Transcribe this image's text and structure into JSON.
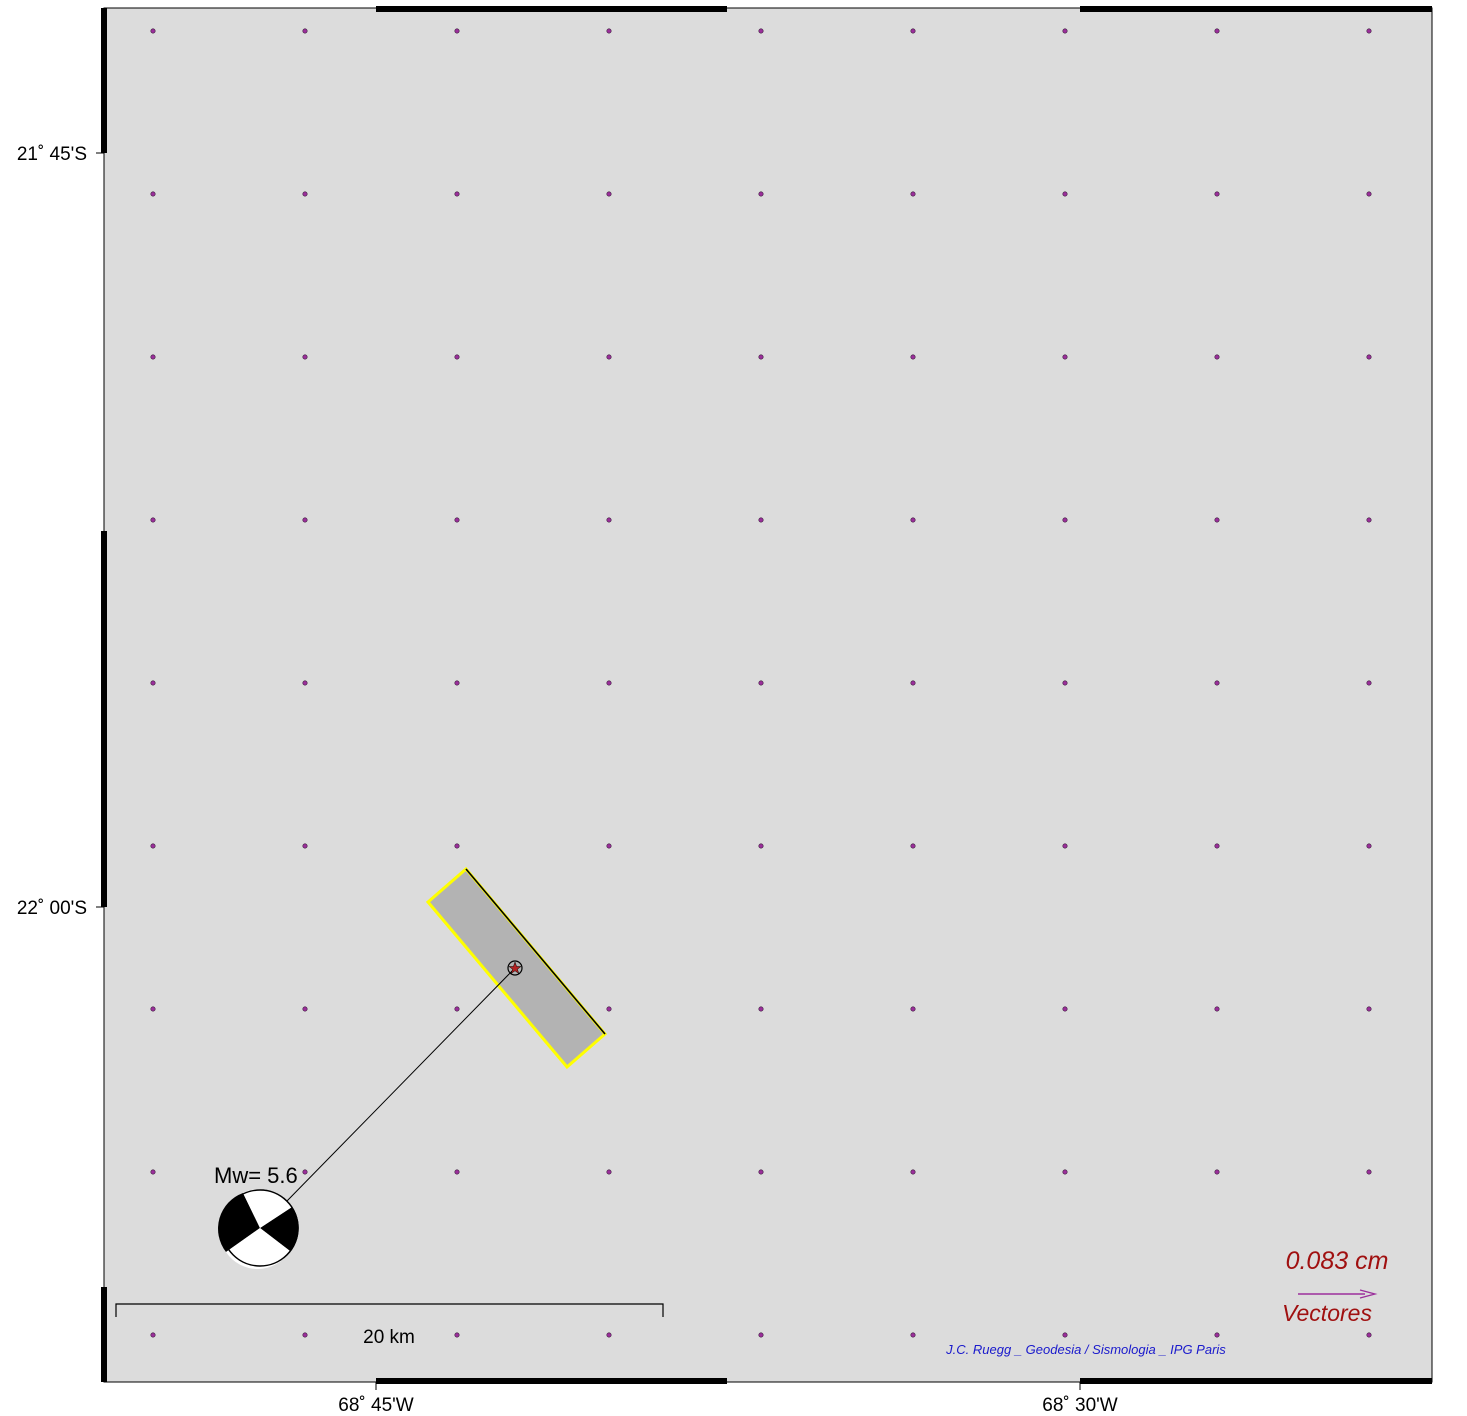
{
  "map": {
    "background_color": "#dcdcdc",
    "frame_color": "#000000",
    "latitude_labels": [
      "21˚ 45'S",
      "22˚ 00'S"
    ],
    "longitude_labels": [
      "68˚ 45'W",
      "68˚ 30'W"
    ],
    "station_grid": {
      "columns": 9,
      "rows": 9,
      "color": "#9b2f9b",
      "icon": "station-dot-icon"
    }
  },
  "fault": {
    "fill_color": "#b3b3b3",
    "outline_color": "#ffff00",
    "top_edge_color": "#000000",
    "epicenter_icon": "star-in-circle-icon",
    "epicenter_color": "#b22222"
  },
  "focal_mechanism": {
    "label": "Mw= 5.6",
    "icon": "beach-ball-icon"
  },
  "scale_bar": {
    "label": "20 km"
  },
  "vector_legend": {
    "value": "0.083  cm",
    "label": "Vectores",
    "text_color": "#a01010",
    "arrow_color": "#9b2f9b"
  },
  "credit": {
    "text": "J.C. Ruegg _ Geodesia / Sismologia _ IPG Paris",
    "color": "#1a1acc"
  }
}
